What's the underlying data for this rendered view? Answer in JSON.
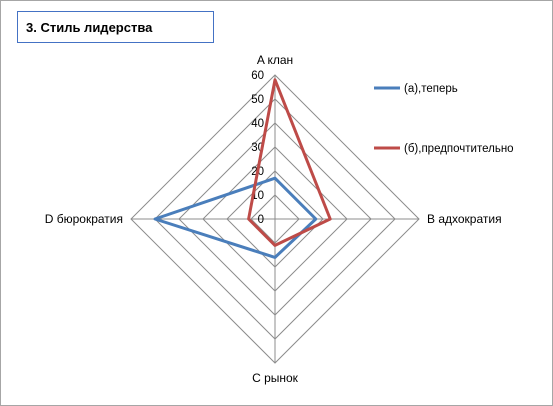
{
  "chart_data": {
    "type": "radar",
    "title": "3. Стиль лидерства",
    "categories": [
      "A клан",
      "B адхократия",
      "C рынок",
      "D бюрократия"
    ],
    "ticks": [
      "0",
      "10",
      "20",
      "30",
      "40",
      "50",
      "60"
    ],
    "rlim": [
      0,
      60
    ],
    "grid": true,
    "legend_position": "right",
    "series": [
      {
        "name": "(а),теперь",
        "color": "#4a7ebb",
        "values": [
          17,
          17,
          16,
          50
        ]
      },
      {
        "name": "(б),предпочтительно",
        "color": "#be4b48",
        "values": [
          58,
          23,
          11,
          11
        ]
      }
    ]
  }
}
